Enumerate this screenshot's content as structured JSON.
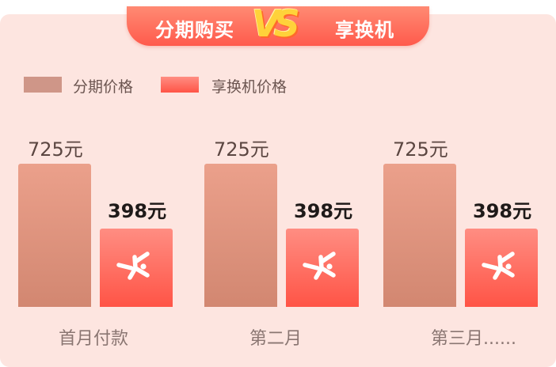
{
  "header": {
    "left_title": "分期购买",
    "vs_text": "VS",
    "right_title": "享换机"
  },
  "colors": {
    "installment_bar": "#dc8f78",
    "trade_bar": "#ff6a5c",
    "background": "#fde5e0"
  },
  "chart_data": {
    "type": "bar",
    "categories": [
      "首月付款",
      "第二月",
      "第三月......"
    ],
    "series": [
      {
        "name": "分期价格",
        "values": [
          725,
          725,
          725
        ],
        "labels": [
          "725元",
          "725元",
          "725元"
        ]
      },
      {
        "name": "享换机价格",
        "values": [
          398,
          398,
          398
        ],
        "labels": [
          "398元",
          "398元",
          "398元"
        ]
      }
    ],
    "title": "",
    "xlabel": "",
    "ylabel": "",
    "ylim": [
      0,
      800
    ],
    "grid": false,
    "legend": "top-left",
    "series_icon": "person-jumping-icon"
  }
}
